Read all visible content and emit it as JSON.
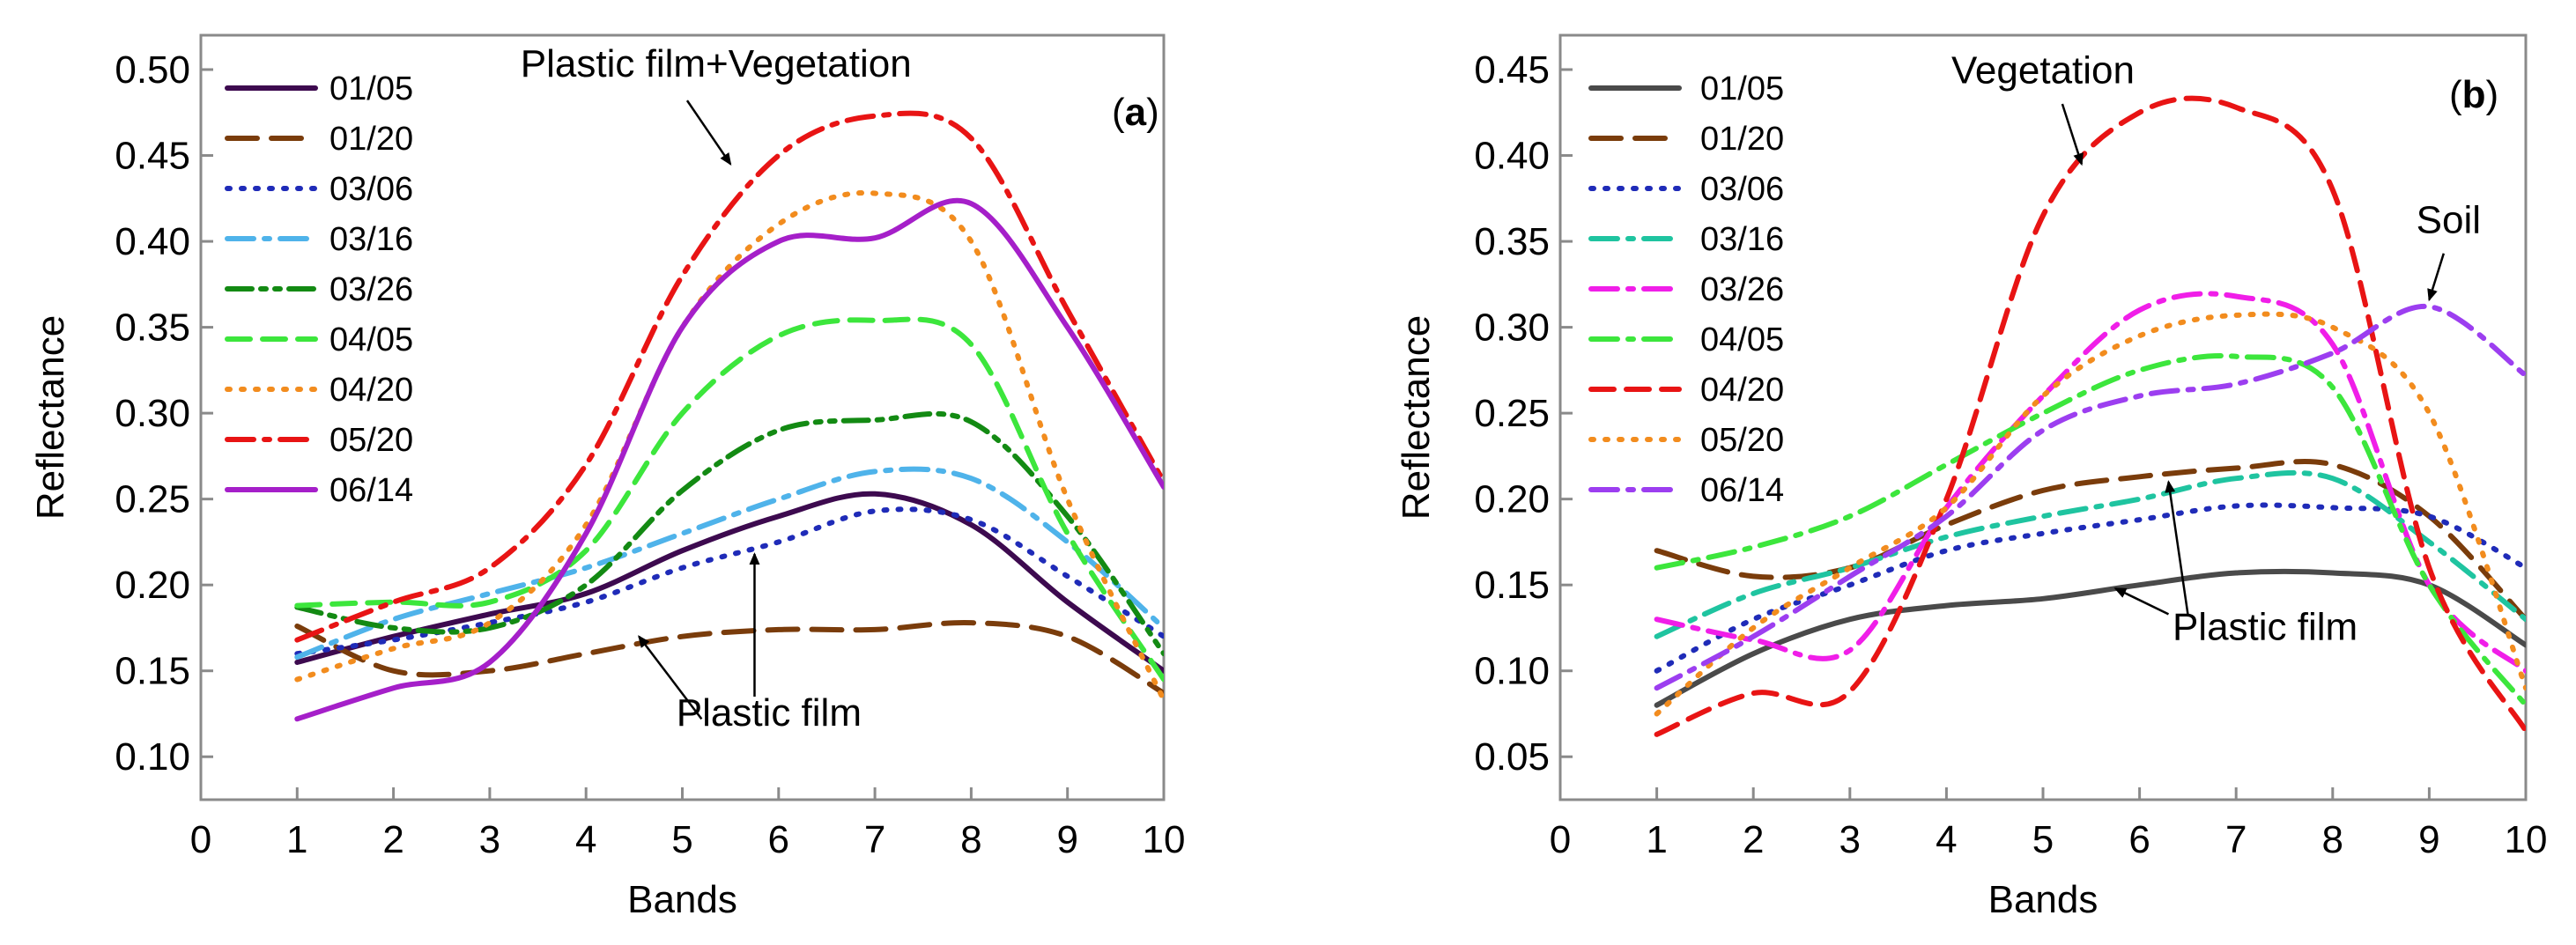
{
  "chart_data": [
    {
      "type": "line",
      "panel_label": "(a)",
      "panel_letter": "a",
      "xlabel": "Bands",
      "ylabel": "Reflectance",
      "xlim": [
        0,
        10
      ],
      "ylim": [
        0.075,
        0.52
      ],
      "x_ticks": [
        0,
        1,
        2,
        3,
        4,
        5,
        6,
        7,
        8,
        9,
        10
      ],
      "x_tick_labels": [
        "0",
        "1",
        "2",
        "3",
        "4",
        "5",
        "6",
        "7",
        "8",
        "9",
        "10"
      ],
      "y_ticks": [
        0.1,
        0.15,
        0.2,
        0.25,
        0.3,
        0.35,
        0.4,
        0.45,
        0.5
      ],
      "y_tick_labels": [
        "0.10",
        "0.15",
        "0.20",
        "0.25",
        "0.30",
        "0.35",
        "0.40",
        "0.45",
        "0.50"
      ],
      "grid": false,
      "legend_position": "top-left",
      "x": [
        1,
        2,
        3,
        4,
        5,
        6,
        7,
        8,
        9,
        10
      ],
      "series": [
        {
          "name": "01/05",
          "color": "#3d0a4f",
          "dash": "solid",
          "values": [
            0.155,
            0.17,
            0.183,
            0.195,
            0.22,
            0.24,
            0.253,
            0.235,
            0.19,
            0.15
          ]
        },
        {
          "name": "01/20",
          "color": "#7a3c0b",
          "dash": "longdash",
          "values": [
            0.176,
            0.15,
            0.15,
            0.16,
            0.17,
            0.174,
            0.174,
            0.178,
            0.17,
            0.137
          ]
        },
        {
          "name": "03/06",
          "color": "#1f2bb8",
          "dash": "dot",
          "values": [
            0.16,
            0.168,
            0.178,
            0.19,
            0.21,
            0.225,
            0.243,
            0.238,
            0.205,
            0.17
          ]
        },
        {
          "name": "03/16",
          "color": "#4fb3ea",
          "dash": "dashdot",
          "values": [
            0.158,
            0.18,
            0.195,
            0.21,
            0.23,
            0.25,
            0.266,
            0.262,
            0.225,
            0.175
          ]
        },
        {
          "name": "03/26",
          "color": "#138a13",
          "dash": "dashdotdot",
          "values": [
            0.187,
            0.175,
            0.175,
            0.2,
            0.255,
            0.29,
            0.296,
            0.295,
            0.24,
            0.16
          ]
        },
        {
          "name": "04/05",
          "color": "#3ce63c",
          "dash": "dash",
          "values": [
            0.188,
            0.19,
            0.19,
            0.22,
            0.3,
            0.345,
            0.354,
            0.34,
            0.23,
            0.145
          ]
        },
        {
          "name": "04/20",
          "color": "#f28c1e",
          "dash": "dot",
          "values": [
            0.145,
            0.163,
            0.178,
            0.235,
            0.35,
            0.41,
            0.428,
            0.4,
            0.25,
            0.133
          ]
        },
        {
          "name": "05/20",
          "color": "#e81414",
          "dash": "dashdot",
          "values": [
            0.168,
            0.19,
            0.21,
            0.27,
            0.38,
            0.45,
            0.473,
            0.46,
            0.36,
            0.26
          ]
        },
        {
          "name": "06/14",
          "color": "#a51fc9",
          "dash": "solid",
          "values": [
            0.122,
            0.14,
            0.155,
            0.23,
            0.35,
            0.4,
            0.402,
            0.422,
            0.35,
            0.257
          ]
        }
      ],
      "annotations": [
        {
          "text": "Plastic film+Vegetation",
          "at": [
            5.35,
            0.496
          ],
          "arrows": [
            {
              "from": [
                5.05,
                0.482
              ],
              "to": [
                5.5,
                0.445
              ]
            }
          ]
        },
        {
          "text": "Plastic film",
          "at": [
            5.9,
            0.118
          ],
          "arrows": [
            {
              "from": [
                5.2,
                0.122
              ],
              "to": [
                4.55,
                0.17
              ]
            },
            {
              "from": [
                5.75,
                0.135
              ],
              "to": [
                5.75,
                0.218
              ]
            }
          ]
        }
      ]
    },
    {
      "type": "line",
      "panel_label": "(b)",
      "panel_letter": "b",
      "xlabel": "Bands",
      "ylabel": "Reflectance",
      "xlim": [
        0,
        10
      ],
      "ylim": [
        0.025,
        0.47
      ],
      "x_ticks": [
        0,
        1,
        2,
        3,
        4,
        5,
        6,
        7,
        8,
        9,
        10
      ],
      "x_tick_labels": [
        "0",
        "1",
        "2",
        "3",
        "4",
        "5",
        "6",
        "7",
        "8",
        "9",
        "10"
      ],
      "y_ticks": [
        0.05,
        0.1,
        0.15,
        0.2,
        0.25,
        0.3,
        0.35,
        0.4,
        0.45
      ],
      "y_tick_labels": [
        "0.05",
        "0.10",
        "0.15",
        "0.20",
        "0.25",
        "0.30",
        "0.35",
        "0.40",
        "0.45"
      ],
      "grid": false,
      "legend_position": "top-left",
      "x": [
        1,
        2,
        3,
        4,
        5,
        6,
        7,
        8,
        9,
        10
      ],
      "series": [
        {
          "name": "01/05",
          "color": "#4a4a4a",
          "dash": "solid",
          "values": [
            0.08,
            0.11,
            0.13,
            0.138,
            0.142,
            0.15,
            0.157,
            0.157,
            0.15,
            0.115
          ]
        },
        {
          "name": "01/20",
          "color": "#7a3c0b",
          "dash": "longdash",
          "values": [
            0.17,
            0.155,
            0.16,
            0.185,
            0.205,
            0.213,
            0.218,
            0.22,
            0.19,
            0.13
          ]
        },
        {
          "name": "03/06",
          "color": "#1f2bb8",
          "dash": "dot",
          "values": [
            0.1,
            0.13,
            0.15,
            0.17,
            0.18,
            0.188,
            0.196,
            0.195,
            0.19,
            0.16
          ]
        },
        {
          "name": "03/16",
          "color": "#1fc4a0",
          "dash": "dashdot",
          "values": [
            0.12,
            0.145,
            0.16,
            0.178,
            0.19,
            0.2,
            0.212,
            0.212,
            0.175,
            0.13
          ]
        },
        {
          "name": "03/26",
          "color": "#f01ee8",
          "dash": "dashdot",
          "values": [
            0.13,
            0.118,
            0.112,
            0.195,
            0.26,
            0.31,
            0.318,
            0.29,
            0.15,
            0.1
          ]
        },
        {
          "name": "04/05",
          "color": "#3ce63c",
          "dash": "dashdot",
          "values": [
            0.16,
            0.172,
            0.19,
            0.22,
            0.25,
            0.275,
            0.283,
            0.265,
            0.15,
            0.08
          ]
        },
        {
          "name": "04/20",
          "color": "#e81414",
          "dash": "dash",
          "values": [
            0.063,
            0.087,
            0.088,
            0.2,
            0.365,
            0.425,
            0.428,
            0.38,
            0.16,
            0.065
          ]
        },
        {
          "name": "05/20",
          "color": "#f28c1e",
          "dash": "dot",
          "values": [
            0.075,
            0.125,
            0.16,
            0.195,
            0.26,
            0.295,
            0.307,
            0.3,
            0.25,
            0.09
          ]
        },
        {
          "name": "06/14",
          "color": "#9c3ef0",
          "dash": "dashdot",
          "values": [
            0.09,
            0.12,
            0.155,
            0.19,
            0.24,
            0.26,
            0.267,
            0.285,
            0.312,
            0.272
          ]
        }
      ],
      "annotations": [
        {
          "text": "Vegetation",
          "at": [
            5.0,
            0.442
          ],
          "arrows": [
            {
              "from": [
                5.2,
                0.43
              ],
              "to": [
                5.4,
                0.395
              ]
            }
          ]
        },
        {
          "text": "Soil",
          "at": [
            9.2,
            0.355
          ],
          "arrows": [
            {
              "from": [
                9.15,
                0.343
              ],
              "to": [
                9.0,
                0.316
              ]
            }
          ]
        },
        {
          "text": "Plastic film",
          "at": [
            7.3,
            0.118
          ],
          "arrows": [
            {
              "from": [
                6.3,
                0.133
              ],
              "to": [
                5.75,
                0.148
              ]
            },
            {
              "from": [
                6.5,
                0.133
              ],
              "to": [
                6.3,
                0.21
              ]
            }
          ]
        }
      ]
    }
  ]
}
